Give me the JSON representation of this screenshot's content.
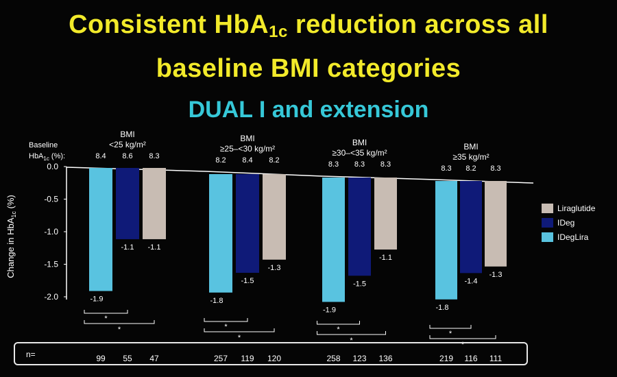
{
  "title_line1_pre": "Consistent HbA",
  "title_line1_sub": "1c",
  "title_line1_post": " reduction across all",
  "title_line2": "baseline BMI categories",
  "subtitle": "DUAL I and extension",
  "baseline_label_1": "Baseline",
  "baseline_label_2_pre": "HbA",
  "baseline_label_2_sub": "1c",
  "baseline_label_2_post": " (%):",
  "y_axis_label_pre": "Change in HbA",
  "y_axis_label_sub": "1c",
  "y_axis_label_post": " (%)",
  "n_label": "n=",
  "significance_marker": "*",
  "colors": {
    "Liraglutide": "#c8bcb3",
    "IDeg": "#0f1a78",
    "IDegLira": "#59c3e0"
  },
  "chart_data": {
    "type": "bar",
    "ylim": [
      -2.0,
      0.0
    ],
    "yticks": [
      "0.0",
      "-0.5",
      "-1.0",
      "-1.5",
      "-2.0"
    ],
    "legend_position": "right",
    "legend": [
      "Liraglutide",
      "IDeg",
      "IDegLira"
    ],
    "groups": [
      {
        "header1": "BMI",
        "header2": "<25 kg/m²",
        "baseline": [
          "8.4",
          "8.6",
          "8.3"
        ],
        "values": [
          -1.9,
          -1.1,
          -1.1
        ],
        "labels": [
          "-1.9",
          "-1.1",
          "-1.1"
        ],
        "n": [
          "99",
          "55",
          "47"
        ]
      },
      {
        "header1": "BMI",
        "header2": "≥25–<30 kg/m²",
        "baseline": [
          "8.2",
          "8.4",
          "8.2"
        ],
        "values": [
          -1.8,
          -1.5,
          -1.3
        ],
        "labels": [
          "-1.8",
          "-1.5",
          "-1.3"
        ],
        "n": [
          "257",
          "119",
          "120"
        ]
      },
      {
        "header1": "BMI",
        "header2": "≥30–<35 kg/m²",
        "baseline": [
          "8.3",
          "8.3",
          "8.3"
        ],
        "values": [
          -1.9,
          -1.5,
          -1.1
        ],
        "labels": [
          "-1.9",
          "-1.5",
          "-1.1"
        ],
        "n": [
          "258",
          "123",
          "136"
        ]
      },
      {
        "header1": "BMI",
        "header2": "≥35 kg/m²",
        "baseline": [
          "8.3",
          "8.2",
          "8.3"
        ],
        "values": [
          -1.8,
          -1.4,
          -1.3
        ],
        "labels": [
          "-1.8",
          "-1.4",
          "-1.3"
        ],
        "n": [
          "219",
          "116",
          "111"
        ]
      }
    ],
    "series_order": [
      "IDegLira",
      "IDeg",
      "Liraglutide"
    ]
  }
}
